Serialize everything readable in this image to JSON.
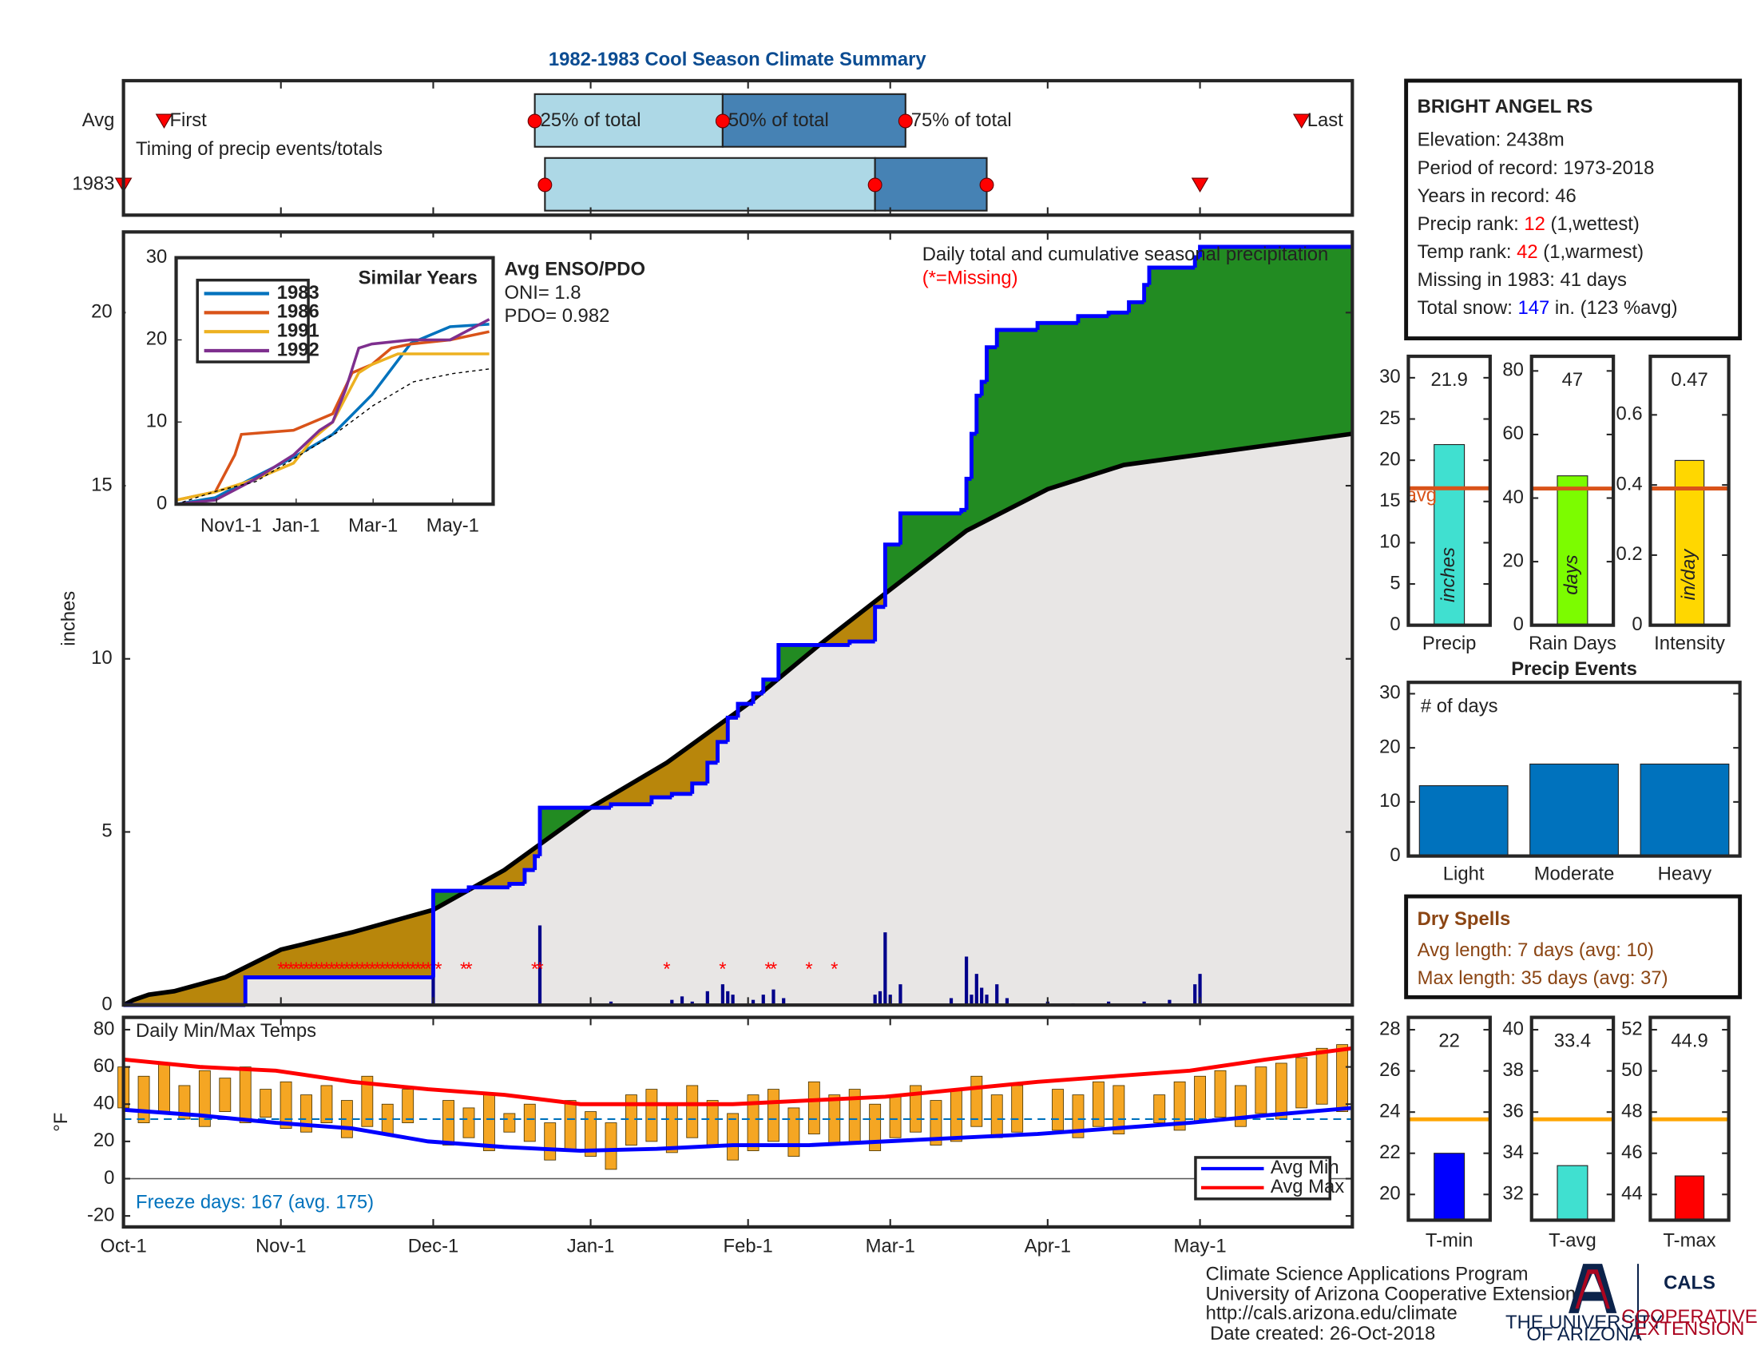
{
  "header": {
    "title": "1982-1983 Cool Season Climate Summary"
  },
  "station": {
    "name": "BRIGHT ANGEL RS",
    "lines": [
      [
        {
          "text": "Elevation: 2438m"
        }
      ],
      [
        {
          "text": "Period of record: 1973-2018"
        }
      ],
      [
        {
          "text": "Years in record: 46"
        }
      ],
      [
        {
          "text": "Precip rank: "
        },
        {
          "text": "12",
          "color": "#ff0000"
        },
        {
          "text": " (1,wettest)"
        }
      ],
      [
        {
          "text": "Temp rank: "
        },
        {
          "text": "42",
          "color": "#ff0000"
        },
        {
          "text": " (1,warmest)"
        }
      ],
      [
        {
          "text": "Missing in 1983: 41 days"
        }
      ],
      [
        {
          "text": "Total snow: "
        },
        {
          "text": "147",
          "color": "#0000ff"
        },
        {
          "text": " in. (123 %avg)"
        }
      ]
    ]
  },
  "enso": {
    "title": "Avg ENSO/PDO",
    "lines": [
      "ONI= 1.8",
      "PDO= 0.982"
    ]
  },
  "dry_spells": {
    "title": "Dry Spells",
    "lines": [
      "Avg length: 7 days (avg: 10)",
      "Max length: 35 days (avg: 37)"
    ]
  },
  "footer": {
    "lines": [
      "Climate Science Applications Program",
      "University of Arizona Cooperative Extension",
      "http://cals.arizona.edu/climate",
      "Date created: 26-Oct-2018"
    ]
  },
  "logo": {
    "university": [
      "THE UNIVERSITY",
      "OF ARIZONA"
    ],
    "cals": "CALS",
    "extension": [
      "COOPERATIVE",
      "EXTENSION"
    ]
  },
  "chart_data": [
    {
      "type": "timing",
      "xlim": [
        0,
        242
      ],
      "note": "Timing of precip events/totals",
      "labels": [
        "First",
        "25% of total",
        "50% of total",
        "75% of total",
        "Last"
      ],
      "rows": [
        {
          "name": "Avg",
          "values": [
            8,
            81,
            118,
            154,
            232
          ]
        },
        {
          "name": "1983",
          "values": [
            0,
            83,
            148,
            170,
            212
          ]
        }
      ],
      "colors": [
        "#add8e6",
        "#4682b4"
      ],
      "marker_color": "#ff0000"
    },
    {
      "type": "cumulative",
      "title": "Daily total and cumulative seasonal precipitation",
      "ylabel": "inches",
      "xlim": [
        0,
        242
      ],
      "ylim": [
        0,
        22.33
      ],
      "yticks": [
        0,
        5,
        10,
        15,
        20
      ],
      "series": [
        {
          "color": "#000000",
          "x": [
            0,
            2,
            5,
            10,
            20,
            31,
            45,
            61,
            75,
            92,
            107,
            123,
            137,
            151,
            166,
            182,
            197,
            212,
            227,
            242
          ],
          "values": [
            0,
            0.15,
            0.3,
            0.4,
            0.8,
            1.6,
            2.1,
            2.75,
            3.9,
            5.7,
            7.0,
            8.7,
            10.4,
            12.0,
            13.7,
            14.9,
            15.6,
            15.9,
            16.2,
            16.5
          ]
        },
        {
          "color": "#0000ff",
          "x": [
            0,
            24,
            61,
            68,
            76,
            79,
            81,
            82,
            96,
            104,
            108,
            112,
            115,
            117,
            119,
            121,
            124,
            126,
            129,
            143,
            148,
            150,
            153,
            165,
            166,
            167,
            168,
            169,
            170,
            172,
            180,
            188,
            194,
            198,
            201,
            202,
            211,
            212,
            242
          ],
          "values": [
            0,
            0.8,
            3.3,
            3.4,
            3.5,
            3.9,
            4.3,
            5.7,
            5.8,
            6.0,
            6.1,
            6.4,
            7.0,
            7.6,
            8.3,
            8.7,
            9.0,
            9.4,
            10.4,
            10.5,
            11.5,
            13.3,
            14.2,
            14.3,
            15.2,
            16.5,
            17.6,
            18.0,
            19.0,
            19.5,
            19.7,
            19.9,
            20.0,
            20.3,
            20.8,
            21.3,
            21.6,
            21.9,
            21.9
          ]
        }
      ],
      "daily": {
        "color": "#00008b",
        "x": [
          61,
          82,
          96,
          108,
          110,
          112,
          115,
          118,
          119,
          120,
          124,
          126,
          128,
          130,
          148,
          149,
          150,
          151,
          153,
          163,
          166,
          167,
          168,
          169,
          170,
          172,
          174,
          182,
          187,
          194,
          201,
          206,
          211,
          212
        ],
        "values": [
          2.5,
          2.3,
          0.1,
          0.15,
          0.25,
          0.1,
          0.4,
          0.6,
          0.4,
          0.3,
          0.15,
          0.3,
          0.45,
          0.2,
          0.3,
          0.4,
          2.1,
          0.3,
          0.6,
          0.2,
          1.4,
          0.3,
          0.9,
          0.5,
          0.3,
          0.6,
          0.2,
          0.1,
          0.05,
          0.1,
          0.1,
          0.15,
          0.6,
          0.9
        ]
      },
      "missing": {
        "note": "(*=Missing)",
        "marker": "*",
        "color": "#ff0000",
        "x": [
          31,
          32,
          33,
          34,
          35,
          36,
          37,
          38,
          39,
          40,
          41,
          42,
          43,
          44,
          45,
          46,
          47,
          48,
          49,
          50,
          51,
          52,
          53,
          54,
          55,
          56,
          57,
          58,
          59,
          60,
          62,
          67,
          68,
          81,
          82,
          107,
          118,
          127,
          128,
          135,
          140
        ]
      },
      "above_color": "#228b22",
      "below_color": "#b8860b",
      "base_color": "#e8e6e5"
    },
    {
      "type": "line",
      "title": "Similar Years",
      "xlim": [
        0,
        243
      ],
      "ylim": [
        0,
        30
      ],
      "yticks": [
        0,
        10,
        20,
        30
      ],
      "xticks": [
        {
          "value": 31,
          "label": "Nov1-1"
        },
        {
          "value": 92,
          "label": "Jan-1"
        },
        {
          "value": 151,
          "label": "Mar-1"
        },
        {
          "value": 212,
          "label": "May-1"
        }
      ],
      "series": [
        {
          "name": "1983",
          "color": "#0072bd",
          "x": [
            0,
            30,
            60,
            90,
            120,
            150,
            180,
            210,
            240
          ],
          "values": [
            0,
            0.8,
            3.3,
            5.7,
            8.5,
            13.3,
            19.6,
            21.6,
            21.9
          ]
        },
        {
          "name": "1986",
          "color": "#d95319",
          "x": [
            0,
            30,
            45,
            50,
            90,
            120,
            135,
            150,
            165,
            180,
            210,
            240
          ],
          "values": [
            0.5,
            1.5,
            6,
            8.5,
            9,
            11,
            16,
            17,
            19,
            19.5,
            20,
            21
          ]
        },
        {
          "name": "1991",
          "color": "#edb120",
          "x": [
            0,
            30,
            60,
            90,
            105,
            120,
            140,
            150,
            170,
            240
          ],
          "values": [
            0.5,
            1.5,
            3,
            5,
            8,
            10,
            16,
            17,
            18.3,
            18.3
          ]
        },
        {
          "name": "1992",
          "color": "#7e2f8e",
          "x": [
            0,
            30,
            60,
            90,
            110,
            120,
            130,
            140,
            150,
            180,
            210,
            240
          ],
          "values": [
            0,
            0.5,
            3,
            6,
            9,
            10,
            14,
            19,
            19.5,
            20,
            20,
            22.5
          ]
        },
        {
          "color": "#000000",
          "dash": true,
          "x": [
            0,
            31,
            61,
            92,
            123,
            151,
            182,
            212,
            242
          ],
          "values": [
            0,
            1.6,
            2.75,
            5.7,
            8.7,
            12.0,
            14.9,
            15.9,
            16.5
          ]
        }
      ]
    },
    {
      "type": "bar",
      "categories": [
        "Precip"
      ],
      "values": [
        21.9
      ],
      "color": "#40e0d0",
      "ylim": [
        0,
        32.6
      ],
      "yticks": [
        0,
        5,
        10,
        15,
        20,
        25,
        30
      ],
      "avg": 16.6,
      "avg_color": "#d95319",
      "avg_label": "avg",
      "unit_label": "inches"
    },
    {
      "type": "bar",
      "categories": [
        "Rain Days"
      ],
      "values": [
        47
      ],
      "color": "#7cfc00",
      "ylim": [
        0,
        84.6
      ],
      "yticks": [
        0,
        20,
        40,
        60,
        80
      ],
      "avg": 43,
      "avg_color": "#d95319",
      "unit_label": "days"
    },
    {
      "type": "bar",
      "categories": [
        "Intensity"
      ],
      "values": [
        0.47
      ],
      "color": "#ffd700",
      "ylim": [
        0,
        0.767
      ],
      "yticks": [
        0,
        0.2,
        0.4,
        0.6
      ],
      "avg": 0.39,
      "avg_color": "#d95319",
      "unit_label": "in/day"
    },
    {
      "type": "bar",
      "title": "Precip Events",
      "note": "# of days",
      "categories": [
        "Light",
        "Moderate",
        "Heavy"
      ],
      "values": [
        13,
        17,
        17
      ],
      "color": "#0072bd",
      "ylim": [
        0,
        32.1
      ],
      "yticks": [
        0,
        10,
        20,
        30
      ]
    },
    {
      "type": "temperature",
      "title": "Daily Min/Max Temps",
      "ylabel": "°F",
      "note": "Freeze days: 167 (avg. 175)",
      "xlim": [
        0,
        242
      ],
      "ylim": [
        -25.9,
        86.6
      ],
      "yticks": [
        -20,
        0,
        20,
        40,
        60,
        80
      ],
      "xticks": [
        {
          "value": 0,
          "label": "Oct-1"
        },
        {
          "value": 31,
          "label": "Nov-1"
        },
        {
          "value": 61,
          "label": "Dec-1"
        },
        {
          "value": 92,
          "label": "Jan-1"
        },
        {
          "value": 123,
          "label": "Feb-1"
        },
        {
          "value": 151,
          "label": "Mar-1"
        },
        {
          "value": 182,
          "label": "Apr-1"
        },
        {
          "value": 212,
          "label": "May-1"
        }
      ],
      "daily": {
        "color": "#f5a623",
        "x": [
          0,
          4,
          8,
          12,
          16,
          20,
          24,
          28,
          32,
          36,
          40,
          44,
          48,
          52,
          56,
          60,
          64,
          68,
          72,
          76,
          80,
          84,
          88,
          92,
          96,
          100,
          104,
          108,
          112,
          116,
          120,
          124,
          128,
          132,
          136,
          140,
          144,
          148,
          152,
          156,
          160,
          164,
          168,
          172,
          176,
          180,
          184,
          188,
          192,
          196,
          200,
          204,
          208,
          212,
          216,
          220,
          224,
          228,
          232,
          236,
          240
        ],
        "min": [
          38,
          30,
          35,
          32,
          28,
          36,
          30,
          33,
          27,
          25,
          30,
          22,
          28,
          24,
          30,
          null,
          18,
          22,
          15,
          25,
          20,
          10,
          15,
          12,
          5,
          18,
          20,
          14,
          22,
          18,
          10,
          15,
          20,
          12,
          24,
          18,
          20,
          15,
          22,
          25,
          18,
          20,
          28,
          22,
          25,
          null,
          26,
          22,
          28,
          24,
          null,
          30,
          26,
          30,
          33,
          28,
          35,
          32,
          38,
          40,
          36
        ],
        "max": [
          60,
          55,
          62,
          50,
          58,
          54,
          60,
          48,
          52,
          45,
          50,
          42,
          55,
          40,
          48,
          null,
          42,
          38,
          45,
          35,
          40,
          30,
          42,
          36,
          30,
          45,
          48,
          40,
          50,
          42,
          35,
          45,
          48,
          38,
          52,
          45,
          48,
          40,
          45,
          50,
          42,
          48,
          55,
          45,
          50,
          null,
          48,
          45,
          52,
          50,
          null,
          45,
          52,
          55,
          58,
          50,
          60,
          62,
          65,
          70,
          72
        ]
      },
      "series": [
        {
          "name": "Avg Min",
          "color": "#0000ff",
          "x": [
            0,
            15,
            30,
            45,
            60,
            75,
            90,
            105,
            120,
            135,
            150,
            165,
            180,
            195,
            210,
            225,
            242
          ],
          "values": [
            37,
            34,
            30,
            27,
            20,
            17,
            15,
            16,
            18,
            18,
            20,
            22,
            24,
            27,
            30,
            34,
            38
          ]
        },
        {
          "name": "Avg Max",
          "color": "#ff0000",
          "x": [
            0,
            15,
            30,
            45,
            60,
            75,
            90,
            105,
            120,
            135,
            150,
            165,
            180,
            195,
            210,
            225,
            242
          ],
          "values": [
            64,
            60,
            58,
            52,
            48,
            45,
            40,
            40,
            40,
            42,
            44,
            48,
            52,
            55,
            58,
            64,
            70
          ]
        }
      ],
      "freeze": 32,
      "freeze_color": "#0072bd"
    },
    {
      "type": "bar",
      "categories": [
        "T-min"
      ],
      "values": [
        22
      ],
      "color": "#0000ff",
      "ylim": [
        18.75,
        28.6
      ],
      "yticks": [
        20,
        22,
        24,
        26,
        28
      ],
      "avg": 23.65,
      "avg_color": "#ffa500"
    },
    {
      "type": "bar",
      "categories": [
        "T-avg"
      ],
      "values": [
        33.4
      ],
      "color": "#40e0d0",
      "ylim": [
        30.75,
        40.6
      ],
      "yticks": [
        32,
        34,
        36,
        38,
        40
      ],
      "avg": 35.65,
      "avg_color": "#ffa500"
    },
    {
      "type": "bar",
      "categories": [
        "T-max"
      ],
      "values": [
        44.9
      ],
      "color": "#ff0000",
      "ylim": [
        42.75,
        52.6
      ],
      "yticks": [
        44,
        46,
        48,
        50,
        52
      ],
      "avg": 47.65,
      "avg_color": "#ffa500"
    }
  ]
}
